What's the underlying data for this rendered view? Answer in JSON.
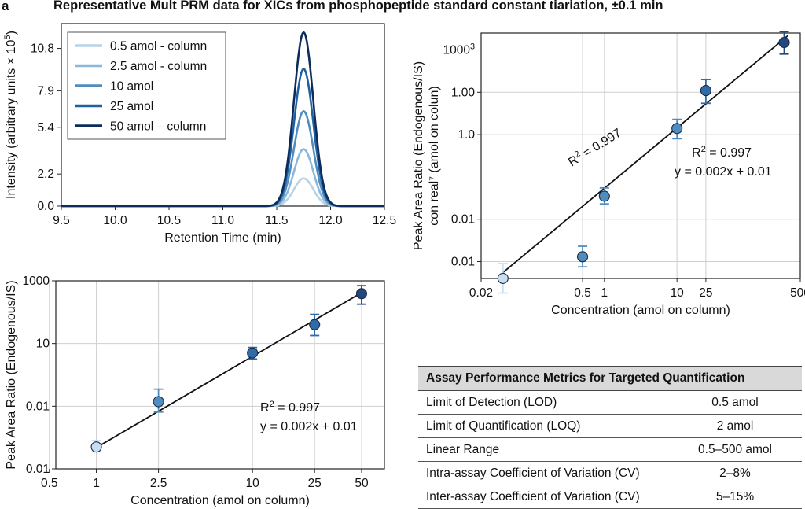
{
  "header": {
    "panel_letter": "a",
    "title": "Representative Mult PRM data for XICs from phosphopeptide standard constant tiariation, ±0.1 min"
  },
  "colors": {
    "series": [
      "#b7d3e8",
      "#8cb7da",
      "#4f8dc0",
      "#21609f",
      "#0c2c5c"
    ],
    "line": "#111111",
    "grid": "#cfcfcf"
  },
  "chart_data": [
    {
      "type": "line",
      "xlabel": "Retention Time (min)",
      "ylabel_pre": "Intensity (arbitrary units × 10",
      "ylabel_sup": "5",
      "ylabel_post": ")",
      "xlim": [
        9.5,
        12.5
      ],
      "ylim": [
        0,
        12.5
      ],
      "x_ticks": [
        9.5,
        10.0,
        10.5,
        11.0,
        11.5,
        12.0,
        12.5
      ],
      "x_tick_labels": [
        "9.5",
        "10.0",
        "10.5",
        "11.0",
        "11.5",
        "12.0",
        "12.5"
      ],
      "y_ticks": [
        0,
        2.2,
        5.4,
        7.9,
        10.8
      ],
      "y_tick_labels": [
        "0.0",
        "2.2",
        "5.4",
        "7.9",
        "10.8"
      ],
      "legend_position": "top-left",
      "peak_center": 11.75,
      "peak_sigma": 0.09,
      "series": [
        {
          "name": "0.5 amol - column",
          "peak": 1.9
        },
        {
          "name": "2.5 amol - column",
          "peak": 3.9
        },
        {
          "name": "10 amol",
          "peak": 6.5
        },
        {
          "name": "25 amol",
          "peak": 9.4
        },
        {
          "name": "50 amol – column",
          "peak": 11.9
        }
      ]
    },
    {
      "type": "scatter",
      "scale": "log",
      "xlabel": "Concentration (amol on column)",
      "ylabel_lines": [
        "Peak Area Ratio (Endogenous/IS)",
        "con real⁷ (amol on colun)"
      ],
      "x_ticks": [
        0.02,
        0.5,
        1,
        10,
        25,
        500
      ],
      "x_tick_labels": [
        "0.02",
        "0.5",
        "1",
        "10",
        "25",
        "500"
      ],
      "y_ticks": [
        "0.01",
        "0.01",
        "1.0",
        "1.00",
        "1000"
      ],
      "y_tick_sup": "3",
      "annotation_r2_prefix": "R",
      "annotation_r2_sup": "2",
      "annotation_r2_suffix": " = 0.997",
      "annotation_eq": "y = 0.002x + 0.01",
      "rotated_r2_prefix": "R",
      "rotated_r2_sup": "2",
      "rotated_r2_suffix": " = 0.997",
      "points": [
        {
          "x": 0.04,
          "y": 0.004,
          "y_low": 0.0018,
          "y_high": 0.009
        },
        {
          "x": 0.5,
          "y": 0.013,
          "y_low": 0.0075,
          "y_high": 0.023
        },
        {
          "x": 1,
          "y": 0.35,
          "y_low": 0.23,
          "y_high": 0.55
        },
        {
          "x": 10,
          "y": 14,
          "y_low": 8,
          "y_high": 23
        },
        {
          "x": 25,
          "y": 110,
          "y_low": 55,
          "y_high": 200
        },
        {
          "x": 300,
          "y": 1500,
          "y_low": 800,
          "y_high": 2700
        }
      ],
      "fit_line": {
        "x": [
          0.04,
          340
        ],
        "y": [
          0.0055,
          2200
        ]
      }
    },
    {
      "type": "scatter",
      "scale": "log",
      "xlabel": "Concentration (amol on column)",
      "ylabel": "Peak Area Ratio (Endogenous/IS)",
      "x_ticks": [
        0.5,
        1,
        2.5,
        10,
        25,
        50
      ],
      "x_tick_labels": [
        "0.5",
        "1",
        "2.5",
        "10",
        "25",
        "50"
      ],
      "y_ticks": [
        "0.01",
        "0.01",
        "10",
        "1000"
      ],
      "annotation_r2_prefix": "R",
      "annotation_r2_sup": "2",
      "annotation_r2_suffix": " = 0.997",
      "annotation_eq": "y = 0.002x + 0.01",
      "points": [
        {
          "x": 1,
          "y": 0.005,
          "y_low": 0.0035,
          "y_high": 0.008
        },
        {
          "x": 2.5,
          "y": 0.14,
          "y_low": 0.065,
          "y_high": 0.35
        },
        {
          "x": 10,
          "y": 5,
          "y_low": 3.2,
          "y_high": 7.5
        },
        {
          "x": 25,
          "y": 40,
          "y_low": 18,
          "y_high": 85
        },
        {
          "x": 50,
          "y": 390,
          "y_low": 180,
          "y_high": 700
        }
      ],
      "fit_line": {
        "x": [
          1,
          50
        ],
        "y": [
          0.0048,
          420
        ]
      }
    }
  ],
  "metrics_table": {
    "header": "Assay Performance Metrics for Targeted Quantification",
    "rows": [
      {
        "label": "Limit of Detection (LOD)",
        "value": "0.5 amol"
      },
      {
        "label": "Limit of Quantification (LOQ)",
        "value": "2 amol"
      },
      {
        "label": "Linear Range",
        "value": "0.5–500 amol"
      },
      {
        "label": "Intra-assay Coefficient of Variation (CV)",
        "value": "2–8%"
      },
      {
        "label": "Inter-assay Coefficient of Variation (CV)",
        "value": "5–15%"
      }
    ]
  }
}
